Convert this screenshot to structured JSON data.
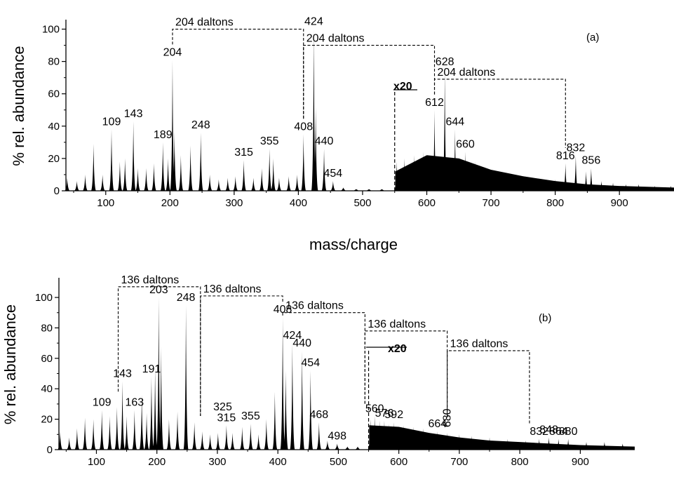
{
  "chart_data": [
    {
      "type": "bar",
      "panel_label": "(a)",
      "xlabel": "mass/charge",
      "ylabel": "% rel. abundance",
      "xlim": [
        38,
        985
      ],
      "ylim": [
        0,
        105
      ],
      "xticks": [
        100,
        200,
        300,
        400,
        500,
        600,
        700,
        800,
        900
      ],
      "yticks": [
        0,
        20,
        40,
        60,
        80,
        100
      ],
      "zoom": {
        "label": "x20",
        "from_mz": 550
      },
      "peaks": [
        {
          "x": 40,
          "y": 8
        },
        {
          "x": 55,
          "y": 6
        },
        {
          "x": 68,
          "y": 10
        },
        {
          "x": 81,
          "y": 29
        },
        {
          "x": 95,
          "y": 10
        },
        {
          "x": 109,
          "y": 38
        },
        {
          "x": 122,
          "y": 18
        },
        {
          "x": 130,
          "y": 20
        },
        {
          "x": 143,
          "y": 43
        },
        {
          "x": 150,
          "y": 14
        },
        {
          "x": 163,
          "y": 14
        },
        {
          "x": 175,
          "y": 17
        },
        {
          "x": 189,
          "y": 30
        },
        {
          "x": 197,
          "y": 20
        },
        {
          "x": 204,
          "y": 81
        },
        {
          "x": 207,
          "y": 37
        },
        {
          "x": 217,
          "y": 22
        },
        {
          "x": 232,
          "y": 28
        },
        {
          "x": 248,
          "y": 36
        },
        {
          "x": 262,
          "y": 10
        },
        {
          "x": 276,
          "y": 7
        },
        {
          "x": 290,
          "y": 8
        },
        {
          "x": 302,
          "y": 9
        },
        {
          "x": 315,
          "y": 19
        },
        {
          "x": 330,
          "y": 8
        },
        {
          "x": 343,
          "y": 14
        },
        {
          "x": 355,
          "y": 26
        },
        {
          "x": 361,
          "y": 20
        },
        {
          "x": 370,
          "y": 8
        },
        {
          "x": 385,
          "y": 9
        },
        {
          "x": 398,
          "y": 10
        },
        {
          "x": 408,
          "y": 35
        },
        {
          "x": 424,
          "y": 100
        },
        {
          "x": 427,
          "y": 52
        },
        {
          "x": 440,
          "y": 26
        },
        {
          "x": 454,
          "y": 6
        },
        {
          "x": 470,
          "y": 2
        },
        {
          "x": 490,
          "y": 1
        },
        {
          "x": 510,
          "y": 1
        },
        {
          "x": 530,
          "y": 1
        }
      ],
      "zoomed_peaks": [
        {
          "x": 553,
          "y": 18
        },
        {
          "x": 565,
          "y": 20
        },
        {
          "x": 580,
          "y": 22
        },
        {
          "x": 595,
          "y": 24
        },
        {
          "x": 612,
          "y": 50
        },
        {
          "x": 628,
          "y": 75
        },
        {
          "x": 644,
          "y": 38
        },
        {
          "x": 660,
          "y": 24
        },
        {
          "x": 675,
          "y": 18
        },
        {
          "x": 690,
          "y": 15
        },
        {
          "x": 706,
          "y": 13
        },
        {
          "x": 722,
          "y": 11
        },
        {
          "x": 738,
          "y": 10
        },
        {
          "x": 754,
          "y": 9
        },
        {
          "x": 770,
          "y": 8
        },
        {
          "x": 786,
          "y": 7
        },
        {
          "x": 800,
          "y": 7
        },
        {
          "x": 816,
          "y": 17
        },
        {
          "x": 832,
          "y": 22
        },
        {
          "x": 848,
          "y": 12
        },
        {
          "x": 856,
          "y": 14
        },
        {
          "x": 872,
          "y": 6
        },
        {
          "x": 890,
          "y": 5
        },
        {
          "x": 910,
          "y": 4
        },
        {
          "x": 930,
          "y": 4
        },
        {
          "x": 955,
          "y": 3
        },
        {
          "x": 980,
          "y": 3
        }
      ],
      "zoom_baseline": [
        {
          "x": 551,
          "y": 12
        },
        {
          "x": 600,
          "y": 22
        },
        {
          "x": 650,
          "y": 20
        },
        {
          "x": 700,
          "y": 13
        },
        {
          "x": 750,
          "y": 9
        },
        {
          "x": 800,
          "y": 6
        },
        {
          "x": 850,
          "y": 4
        },
        {
          "x": 900,
          "y": 3
        },
        {
          "x": 985,
          "y": 2
        }
      ],
      "peak_labels": [
        {
          "text": "109",
          "x": 109,
          "y": 38
        },
        {
          "text": "143",
          "x": 143,
          "y": 43
        },
        {
          "text": "189",
          "x": 189,
          "y": 30
        },
        {
          "text": "204",
          "x": 204,
          "y": 81
        },
        {
          "text": "248",
          "x": 248,
          "y": 36
        },
        {
          "text": "315",
          "x": 315,
          "y": 19
        },
        {
          "text": "355",
          "x": 355,
          "y": 26
        },
        {
          "text": "408",
          "x": 408,
          "y": 35
        },
        {
          "text": "424",
          "x": 424,
          "y": 100
        },
        {
          "text": "440",
          "x": 440,
          "y": 26
        },
        {
          "text": "454",
          "x": 454,
          "y": 6
        },
        {
          "text": "612",
          "x": 612,
          "y": 50
        },
        {
          "text": "628",
          "x": 628,
          "y": 75
        },
        {
          "text": "644",
          "x": 644,
          "y": 38
        },
        {
          "text": "660",
          "x": 660,
          "y": 24
        },
        {
          "text": "816",
          "x": 816,
          "y": 17
        },
        {
          "text": "832",
          "x": 832,
          "y": 22
        },
        {
          "text": "856",
          "x": 856,
          "y": 14
        }
      ],
      "brackets": [
        {
          "label": "204 daltons",
          "x1": 204,
          "x2": 408,
          "y": 100
        },
        {
          "label": "204 daltons",
          "x1": 408,
          "x2": 612,
          "y": 90
        },
        {
          "label": "204 daltons",
          "x1": 612,
          "x2": 816,
          "y": 69
        }
      ]
    },
    {
      "type": "bar",
      "panel_label": "(b)",
      "xlabel": "",
      "ylabel": "% rel. abundance",
      "xlim": [
        38,
        990
      ],
      "ylim": [
        0,
        112
      ],
      "xticks": [
        100,
        200,
        300,
        400,
        500,
        600,
        700,
        800,
        900
      ],
      "yticks": [
        0,
        20,
        40,
        60,
        80,
        100
      ],
      "zoom": {
        "label": "x20",
        "from_mz": 550
      },
      "peaks": [
        {
          "x": 40,
          "y": 12
        },
        {
          "x": 55,
          "y": 8
        },
        {
          "x": 68,
          "y": 14
        },
        {
          "x": 81,
          "y": 21
        },
        {
          "x": 95,
          "y": 20
        },
        {
          "x": 109,
          "y": 26
        },
        {
          "x": 122,
          "y": 22
        },
        {
          "x": 134,
          "y": 28
        },
        {
          "x": 143,
          "y": 45
        },
        {
          "x": 150,
          "y": 22
        },
        {
          "x": 163,
          "y": 26
        },
        {
          "x": 175,
          "y": 36
        },
        {
          "x": 183,
          "y": 24
        },
        {
          "x": 191,
          "y": 48
        },
        {
          "x": 197,
          "y": 54
        },
        {
          "x": 203,
          "y": 100
        },
        {
          "x": 207,
          "y": 68
        },
        {
          "x": 220,
          "y": 20
        },
        {
          "x": 234,
          "y": 25
        },
        {
          "x": 248,
          "y": 95
        },
        {
          "x": 262,
          "y": 18
        },
        {
          "x": 275,
          "y": 12
        },
        {
          "x": 288,
          "y": 10
        },
        {
          "x": 301,
          "y": 11
        },
        {
          "x": 315,
          "y": 16
        },
        {
          "x": 325,
          "y": 11
        },
        {
          "x": 341,
          "y": 15
        },
        {
          "x": 355,
          "y": 17
        },
        {
          "x": 368,
          "y": 10
        },
        {
          "x": 381,
          "y": 20
        },
        {
          "x": 395,
          "y": 38
        },
        {
          "x": 408,
          "y": 87
        },
        {
          "x": 413,
          "y": 52
        },
        {
          "x": 424,
          "y": 70
        },
        {
          "x": 440,
          "y": 65
        },
        {
          "x": 454,
          "y": 52
        },
        {
          "x": 468,
          "y": 18
        },
        {
          "x": 482,
          "y": 6
        },
        {
          "x": 498,
          "y": 4
        },
        {
          "x": 515,
          "y": 2
        },
        {
          "x": 532,
          "y": 2
        }
      ],
      "zoomed_peaks": [
        {
          "x": 553,
          "y": 20
        },
        {
          "x": 560,
          "y": 22
        },
        {
          "x": 568,
          "y": 19
        },
        {
          "x": 576,
          "y": 19
        },
        {
          "x": 584,
          "y": 17
        },
        {
          "x": 592,
          "y": 18
        },
        {
          "x": 608,
          "y": 16
        },
        {
          "x": 624,
          "y": 15
        },
        {
          "x": 640,
          "y": 14
        },
        {
          "x": 664,
          "y": 12
        },
        {
          "x": 680,
          "y": 11
        },
        {
          "x": 700,
          "y": 10
        },
        {
          "x": 720,
          "y": 9
        },
        {
          "x": 750,
          "y": 8
        },
        {
          "x": 780,
          "y": 7
        },
        {
          "x": 810,
          "y": 6
        },
        {
          "x": 832,
          "y": 7
        },
        {
          "x": 848,
          "y": 8
        },
        {
          "x": 864,
          "y": 7
        },
        {
          "x": 880,
          "y": 7
        },
        {
          "x": 910,
          "y": 5
        },
        {
          "x": 940,
          "y": 5
        },
        {
          "x": 970,
          "y": 4
        }
      ],
      "zoom_baseline": [
        {
          "x": 551,
          "y": 16
        },
        {
          "x": 600,
          "y": 15
        },
        {
          "x": 650,
          "y": 11
        },
        {
          "x": 700,
          "y": 8
        },
        {
          "x": 750,
          "y": 6
        },
        {
          "x": 800,
          "y": 5
        },
        {
          "x": 850,
          "y": 4
        },
        {
          "x": 900,
          "y": 3
        },
        {
          "x": 990,
          "y": 2
        }
      ],
      "peak_labels": [
        {
          "text": "109",
          "x": 109,
          "y": 26
        },
        {
          "text": "143",
          "x": 143,
          "y": 45
        },
        {
          "text": "163",
          "x": 163,
          "y": 26
        },
        {
          "text": "191",
          "x": 191,
          "y": 48
        },
        {
          "text": "203",
          "x": 203,
          "y": 100
        },
        {
          "text": "248",
          "x": 248,
          "y": 95
        },
        {
          "text": "315",
          "x": 315,
          "y": 16
        },
        {
          "text": "325",
          "x": 325,
          "y": 11
        },
        {
          "text": "355",
          "x": 355,
          "y": 17
        },
        {
          "text": "408",
          "x": 408,
          "y": 87
        },
        {
          "text": "424",
          "x": 424,
          "y": 70
        },
        {
          "text": "440",
          "x": 440,
          "y": 65
        },
        {
          "text": "454",
          "x": 454,
          "y": 52
        },
        {
          "text": "468",
          "x": 468,
          "y": 18
        },
        {
          "text": "498",
          "x": 498,
          "y": 4
        },
        {
          "text": "560",
          "x": 560,
          "y": 22
        },
        {
          "text": "576",
          "x": 576,
          "y": 19
        },
        {
          "text": "592",
          "x": 592,
          "y": 18
        },
        {
          "text": "664",
          "x": 664,
          "y": 12
        },
        {
          "text": "680",
          "x": 680,
          "y": 11
        },
        {
          "text": "832",
          "x": 832,
          "y": 7
        },
        {
          "text": "848",
          "x": 848,
          "y": 8
        },
        {
          "text": "864",
          "x": 864,
          "y": 7
        },
        {
          "text": "880",
          "x": 880,
          "y": 7
        }
      ],
      "brackets": [
        {
          "label": "136 daltons",
          "x1": 136,
          "x2": 272,
          "y": 107
        },
        {
          "label": "136 daltons",
          "x1": 272,
          "x2": 408,
          "y": 101
        },
        {
          "label": "136 daltons",
          "x1": 408,
          "x2": 544,
          "y": 90
        },
        {
          "label": "136 daltons",
          "x1": 544,
          "x2": 680,
          "y": 78
        },
        {
          "label": "136 daltons",
          "x1": 680,
          "x2": 816,
          "y": 65
        }
      ]
    }
  ]
}
